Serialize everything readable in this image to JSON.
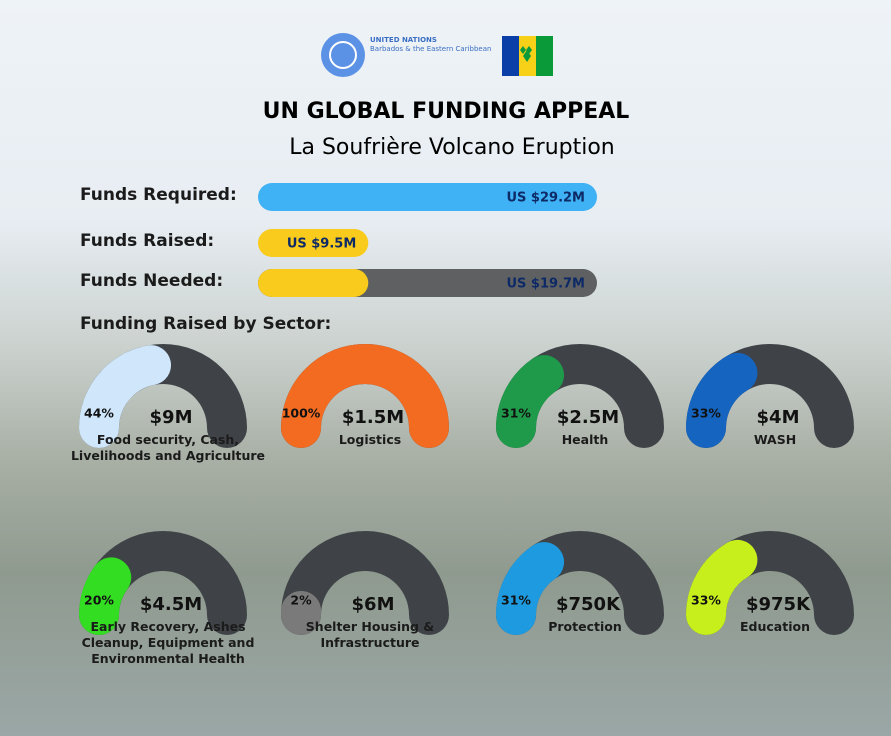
{
  "header": {
    "org": "UNITED NATIONS",
    "org_sub": "Barbados & the Eastern Caribbean",
    "title": "UN GLOBAL FUNDING APPEAL",
    "subtitle": "La Soufrière Volcano Eruption"
  },
  "funds": [
    {
      "label": "Funds Required:",
      "value": 29.2,
      "value_label": "US $29.2M"
    },
    {
      "label": "Funds Raised:",
      "value": 9.5,
      "value_label": "US $9.5M"
    },
    {
      "label": "Funds Needed:",
      "value": 19.7,
      "value_label": "US $19.7M"
    }
  ],
  "sector_heading": "Funding Raised by Sector:",
  "sectors": [
    {
      "name": "Food security, Cash, Livelihoods and Agriculture",
      "percent": 44,
      "percent_label": "44%",
      "amount": "$9M",
      "color": "#cfe6fb"
    },
    {
      "name": "Logistics",
      "percent": 100,
      "percent_label": "100%",
      "amount": "$1.5M",
      "color": "#f26b21"
    },
    {
      "name": "Health",
      "percent": 31,
      "percent_label": "31%",
      "amount": "$2.5M",
      "color": "#1f9a4a"
    },
    {
      "name": "WASH",
      "percent": 33,
      "percent_label": "33%",
      "amount": "$4M",
      "color": "#1565c0"
    },
    {
      "name": "Early Recovery, Ashes Cleanup, Equipment and Environmental Health",
      "percent": 20,
      "percent_label": "20%",
      "amount": "$4.5M",
      "color": "#33dd22"
    },
    {
      "name": "Shelter Housing & Infrastructure",
      "percent": 2,
      "percent_label": "2%",
      "amount": "$6M",
      "color": "#7a7a7a"
    },
    {
      "name": "Protection",
      "percent": 31,
      "percent_label": "31%",
      "amount": "$750K",
      "color": "#1e9be0"
    },
    {
      "name": "Education",
      "percent": 33,
      "percent_label": "33%",
      "amount": "$975K",
      "color": "#c6ef1c"
    }
  ]
}
